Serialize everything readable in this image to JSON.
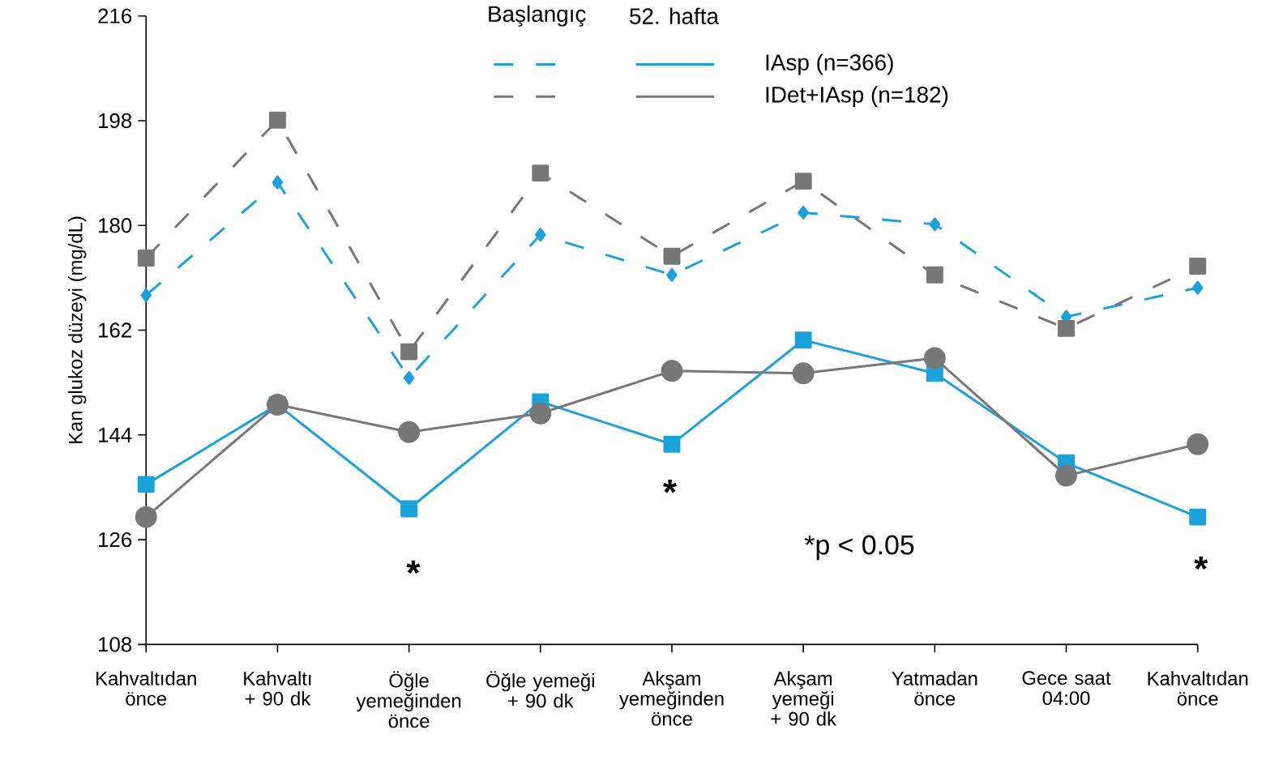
{
  "chart_data": {
    "type": "line",
    "ylabel": "Kan glukoz düzeyi (mg/dL)",
    "categories": [
      "Kahvaltıdan önce",
      "Kahvaltı + 90 dk",
      "Öğle yemeğinden önce",
      "Öğle yemeği + 90 dk",
      "Akşam yemeğinden önce",
      "Akşam yemeği + 90 dk",
      "Yatmadan önce",
      "Gece saat 04:00",
      "Kahvaltıdan önce"
    ],
    "ylim": [
      108,
      216
    ],
    "yticks": [
      108,
      126,
      144,
      162,
      180,
      198,
      216
    ],
    "grid": false,
    "legend": "top right",
    "series": [
      {
        "color": "#1ba1db",
        "line_style": "dashed",
        "marker": "diamond",
        "values": [
          168.0,
          187.4,
          153.8,
          178.4,
          171.5,
          182.2,
          180.2,
          164.3,
          169.3
        ]
      },
      {
        "name": "IAsp (n=366)",
        "color": "#1ba1db",
        "line_style": "solid",
        "marker": "square",
        "values": [
          135.5,
          149.2,
          131.3,
          149.7,
          142.4,
          160.3,
          154.6,
          139.2,
          129.9
        ]
      },
      {
        "color": "#777777",
        "line_style": "dashed",
        "marker": "square",
        "values": [
          174.4,
          198.1,
          158.3,
          189.0,
          174.7,
          187.6,
          171.5,
          162.3,
          173.0
        ]
      },
      {
        "name": "IDet+IAsp (n=182)",
        "color": "#777777",
        "line_style": "solid",
        "marker": "circle",
        "values": [
          129.9,
          149.2,
          144.5,
          147.7,
          155.0,
          154.6,
          157.2,
          137.0,
          142.4
        ]
      }
    ],
    "annotations": [
      "Başlangıç",
      "52. hafta",
      "*p < 0.05",
      "*",
      "*",
      "*"
    ]
  }
}
